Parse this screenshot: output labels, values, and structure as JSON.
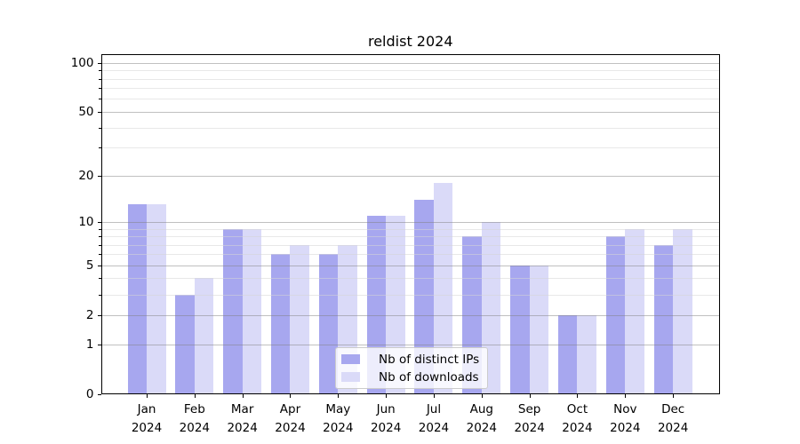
{
  "title": "reldist 2024",
  "chart_data": {
    "type": "bar",
    "title": "reldist 2024",
    "categories": [
      "Jan 2024",
      "Feb 2024",
      "Mar 2024",
      "Apr 2024",
      "May 2024",
      "Jun 2024",
      "Jul 2024",
      "Aug 2024",
      "Sep 2024",
      "Oct 2024",
      "Nov 2024",
      "Dec 2024"
    ],
    "series": [
      {
        "name": "Nb of distinct IPs",
        "color": "#a7a7ef",
        "values": [
          13,
          3,
          9,
          6,
          6,
          11,
          14,
          8,
          5,
          2,
          8,
          7
        ]
      },
      {
        "name": "Nb of downloads",
        "color": "#dadaf8",
        "values": [
          13,
          4,
          9,
          7,
          7,
          11,
          18,
          10,
          5,
          2,
          9,
          9
        ]
      }
    ],
    "xlabel": "",
    "ylabel": "",
    "y_scale": "log10(value+1)",
    "y_ticks": [
      0,
      1,
      2,
      5,
      10,
      20,
      50,
      100
    ],
    "y_minor_ticks": [
      3,
      4,
      6,
      7,
      8,
      9,
      30,
      40,
      60,
      70,
      80,
      90
    ],
    "ylim": [
      0,
      113
    ],
    "grid": true,
    "legend_position": "lower center"
  },
  "colors": {
    "major_grid": "#c6c6c6",
    "minor_grid": "#e9e9e9",
    "axis": "#000000",
    "legend_border": "#cccccc",
    "legend_bg": "rgba(255,255,255,0.8)",
    "background": "#ffffff",
    "text": "#000000"
  }
}
